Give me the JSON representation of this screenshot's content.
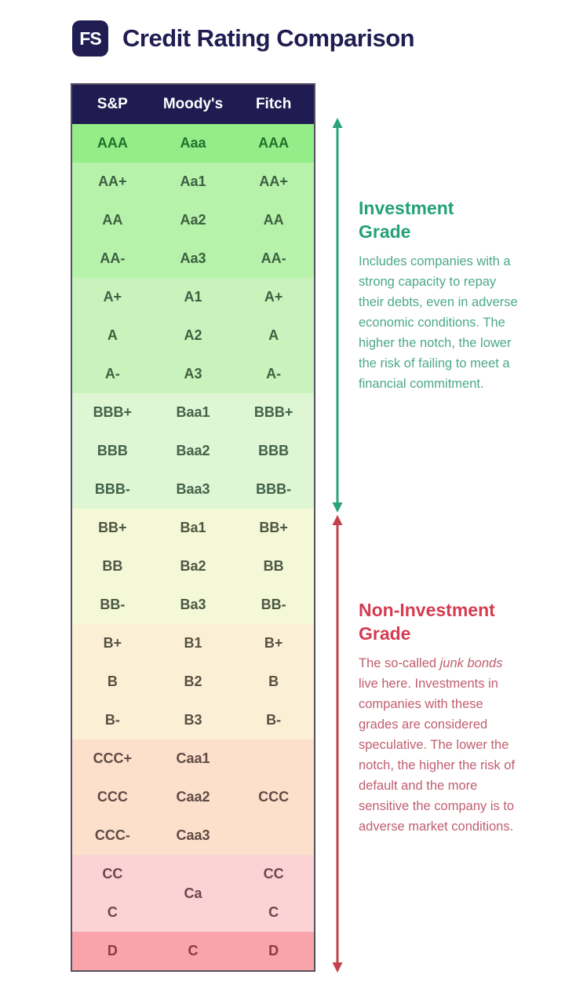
{
  "header": {
    "logo_text": "FS",
    "title": "Credit Rating Comparison"
  },
  "colors": {
    "navy": "#211d52",
    "table_border": "#55505f",
    "header_bg": "#201c52",
    "header_text": "#ffffff"
  },
  "chart_data": {
    "type": "table",
    "title": "Credit Rating Comparison",
    "columns": [
      "S&P",
      "Moody's",
      "Fitch"
    ],
    "bands": [
      {
        "name": "AAA",
        "bg": "#94ed88",
        "text_color": "#23702a",
        "rows": [
          [
            "AAA",
            "Aaa",
            "AAA"
          ]
        ]
      },
      {
        "name": "AA",
        "bg": "#b7f2ab",
        "text_color": "#3b5f41",
        "rows": [
          [
            "AA+",
            "Aa1",
            "AA+"
          ],
          [
            "AA",
            "Aa2",
            "AA"
          ],
          [
            "AA-",
            "Aa3",
            "AA-"
          ]
        ]
      },
      {
        "name": "A",
        "bg": "#c9f3bc",
        "text_color": "#3f6040",
        "rows": [
          [
            "A+",
            "A1",
            "A+"
          ],
          [
            "A",
            "A2",
            "A"
          ],
          [
            "A-",
            "A3",
            "A-"
          ]
        ]
      },
      {
        "name": "BBB",
        "bg": "#def6d3",
        "text_color": "#42624a",
        "rows": [
          [
            "BBB+",
            "Baa1",
            "BBB+"
          ],
          [
            "BBB",
            "Baa2",
            "BBB"
          ],
          [
            "BBB-",
            "Baa3",
            "BBB-"
          ]
        ]
      },
      {
        "name": "BB",
        "bg": "#f4f8d6",
        "text_color": "#4c5743",
        "rows": [
          [
            "BB+",
            "Ba1",
            "BB+"
          ],
          [
            "BB",
            "Ba2",
            "BB"
          ],
          [
            "BB-",
            "Ba3",
            "BB-"
          ]
        ]
      },
      {
        "name": "B",
        "bg": "#fbf0d5",
        "text_color": "#575044",
        "rows": [
          [
            "B+",
            "B1",
            "B+"
          ],
          [
            "B",
            "B2",
            "B"
          ],
          [
            "B-",
            "B3",
            "B-"
          ]
        ]
      },
      {
        "name": "CCC",
        "bg": "#fce0cb",
        "text_color": "#5f4a45",
        "rows": [
          [
            "CCC+",
            "Caa1",
            ""
          ],
          [
            "CCC",
            "Caa2",
            "CCC"
          ],
          [
            "CCC-",
            "Caa3",
            ""
          ]
        ]
      },
      {
        "name": "CC",
        "bg": "#fbd3d5",
        "text_color": "#6f454d",
        "rows": [
          [
            "CC",
            {
              "text": "Ca",
              "span": 2
            },
            "CC"
          ],
          [
            "C",
            null,
            "C"
          ]
        ]
      },
      {
        "name": "D",
        "bg": "#f9a4aa",
        "text_color": "#8d3a41",
        "rows": [
          [
            "D",
            "C",
            "D"
          ]
        ]
      }
    ]
  },
  "annotations": {
    "investment": {
      "title": "Investment Grade",
      "body": "Includes companies with a strong capacity to repay their debts, even in adverse economic conditions. The higher the notch, the lower the risk of failing to meet a financial commitment.",
      "title_color": "#23a274",
      "body_color": "#4ca88b"
    },
    "non_investment": {
      "title": "Non-Investment Grade",
      "body_segments": [
        {
          "text": "The so-called ",
          "italic": false
        },
        {
          "text": "junk bonds",
          "italic": true
        },
        {
          "text": " live here. Investments in companies with these grades are considered speculative. The lower the notch, the higher the risk of default and the more sensitive the company is to adverse market conditions.",
          "italic": false
        }
      ],
      "title_color": "#d43c51",
      "body_color": "#c05e70"
    }
  },
  "arrows": {
    "investment_color": "#2ca478",
    "non_investment_color": "#c2414d"
  }
}
